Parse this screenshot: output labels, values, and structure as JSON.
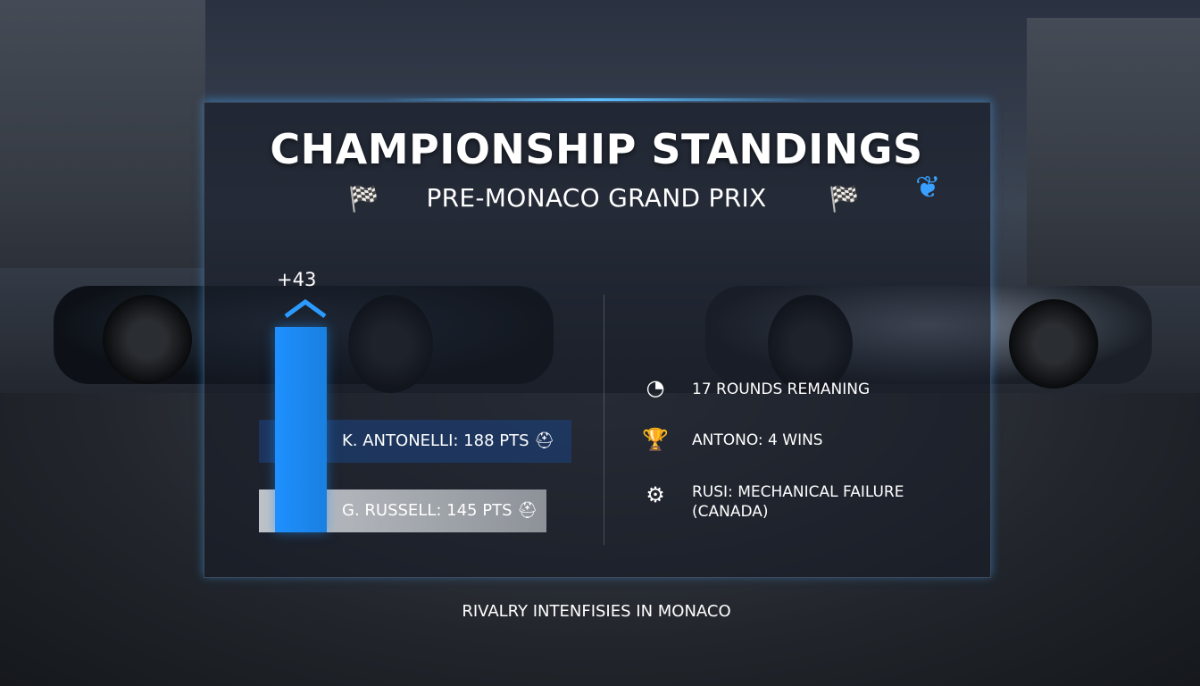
{
  "header": {
    "title": "CHAMPIONSHIP STANDINGS",
    "subtitle": "PRE-MONACO GRAND PRIX"
  },
  "standings": {
    "gap": "+43",
    "rows": [
      "K. ANTONELLI: 188 PTS",
      "G. RUSSELL: 145 PTS"
    ]
  },
  "facts": [
    "17 ROUNDS REMANING",
    "ANTONO: 4 WINS",
    "RUSI: MECHANICAL FAILURE (CANADA)"
  ],
  "footer": "RIVALRY INTENFISIES IN MONACO"
}
